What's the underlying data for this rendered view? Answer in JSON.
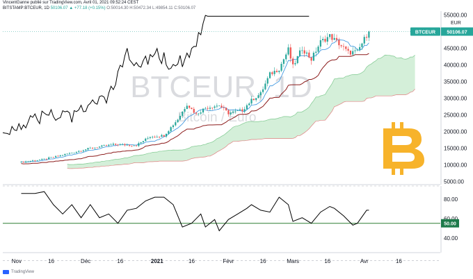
{
  "header": {
    "line1": "VincentGanne publié sur TradingView.com, Avril 01, 2021 09:52:24 CEST",
    "symbol": "BITSTAMP:BTCEUR, 1D",
    "last": "50106.07",
    "change": "▲ +77.18 (+0.15%)",
    "ohlc": "O:50014.30 H:50472.34 L:49854.11 C:50106.07"
  },
  "watermark": {
    "main": "BTCEUR, 1D",
    "sub": "Bitcoin / Euro"
  },
  "logo": "bitcoin-logo",
  "footer": {
    "brand": "TradingView"
  },
  "colors": {
    "up": "#26a69a",
    "down": "#ef5350",
    "kijun": "#8b1a1a",
    "tenkan": "#2f8fde",
    "chikou": "#000000",
    "cloud": "#c9ebcf",
    "rsiline": "#2e7d32",
    "badge": "#1e7a4b",
    "btc": "#f7b32b"
  },
  "chart_data": [
    {
      "type": "candlestick",
      "symbol": "BTCEUR",
      "interval": "1D",
      "price_badge": "BTCEUR",
      "last_value": "50106.07",
      "y_unit": "EUR",
      "ylim": [
        5000,
        55000
      ],
      "y_ticks": [
        "55000.00",
        "50000.00",
        "45000.00",
        "40000.00",
        "35000.00",
        "30000.00",
        "25000.00",
        "20000.00",
        "15000.00",
        "10000.00",
        "5000.00"
      ],
      "x_ticks": [
        "Nov",
        "16",
        "Déc",
        "16",
        "2021",
        "16",
        "Févr",
        "16",
        "Mars",
        "16",
        "Avr",
        "16"
      ],
      "price_path": [
        [
          0,
          10900
        ],
        [
          10,
          11800
        ],
        [
          20,
          13400
        ],
        [
          30,
          15100
        ],
        [
          40,
          16200
        ],
        [
          50,
          16000
        ],
        [
          56,
          18600
        ],
        [
          62,
          18900
        ],
        [
          68,
          23800
        ],
        [
          72,
          28300
        ],
        [
          76,
          25300
        ],
        [
          80,
          27200
        ],
        [
          86,
          28000
        ],
        [
          90,
          25600
        ],
        [
          96,
          26500
        ],
        [
          100,
          29500
        ],
        [
          104,
          31500
        ],
        [
          108,
          37300
        ],
        [
          112,
          39000
        ],
        [
          116,
          44700
        ],
        [
          118,
          39600
        ],
        [
          122,
          45100
        ],
        [
          126,
          41800
        ],
        [
          130,
          47000
        ],
        [
          134,
          48800
        ],
        [
          138,
          46500
        ],
        [
          142,
          43800
        ],
        [
          146,
          44000
        ],
        [
          150,
          49100
        ],
        [
          151,
          50106
        ]
      ],
      "indicators": [
        "Ichimoku Tenkan-sen",
        "Ichimoku Kijun-sen",
        "Chikou span",
        "Kumo cloud"
      ]
    },
    {
      "type": "line",
      "indicator": "RSI",
      "ylim": [
        35,
        70
      ],
      "y_ticks": [
        "80.00",
        "60.00",
        "40.00"
      ],
      "reference_line": 50,
      "badge": "50.00",
      "path": [
        [
          0,
          66
        ],
        [
          6,
          66
        ],
        [
          10,
          67
        ],
        [
          14,
          60
        ],
        [
          18,
          55
        ],
        [
          22,
          60
        ],
        [
          26,
          53
        ],
        [
          30,
          60
        ],
        [
          34,
          53
        ],
        [
          38,
          55
        ],
        [
          42,
          50
        ],
        [
          46,
          57
        ],
        [
          50,
          58
        ],
        [
          54,
          62
        ],
        [
          58,
          64
        ],
        [
          62,
          64
        ],
        [
          66,
          60
        ],
        [
          70,
          48
        ],
        [
          74,
          50
        ],
        [
          78,
          55
        ],
        [
          80,
          48
        ],
        [
          84,
          52
        ],
        [
          86,
          46
        ],
        [
          90,
          52
        ],
        [
          94,
          55
        ],
        [
          98,
          58
        ],
        [
          100,
          60
        ],
        [
          104,
          57
        ],
        [
          108,
          56
        ],
        [
          112,
          64
        ],
        [
          116,
          60
        ],
        [
          118,
          51
        ],
        [
          122,
          53
        ],
        [
          126,
          50
        ],
        [
          130,
          56
        ],
        [
          134,
          59
        ],
        [
          136,
          58
        ],
        [
          140,
          54
        ],
        [
          144,
          49
        ],
        [
          146,
          50
        ],
        [
          150,
          57
        ],
        [
          151,
          57
        ]
      ]
    }
  ]
}
